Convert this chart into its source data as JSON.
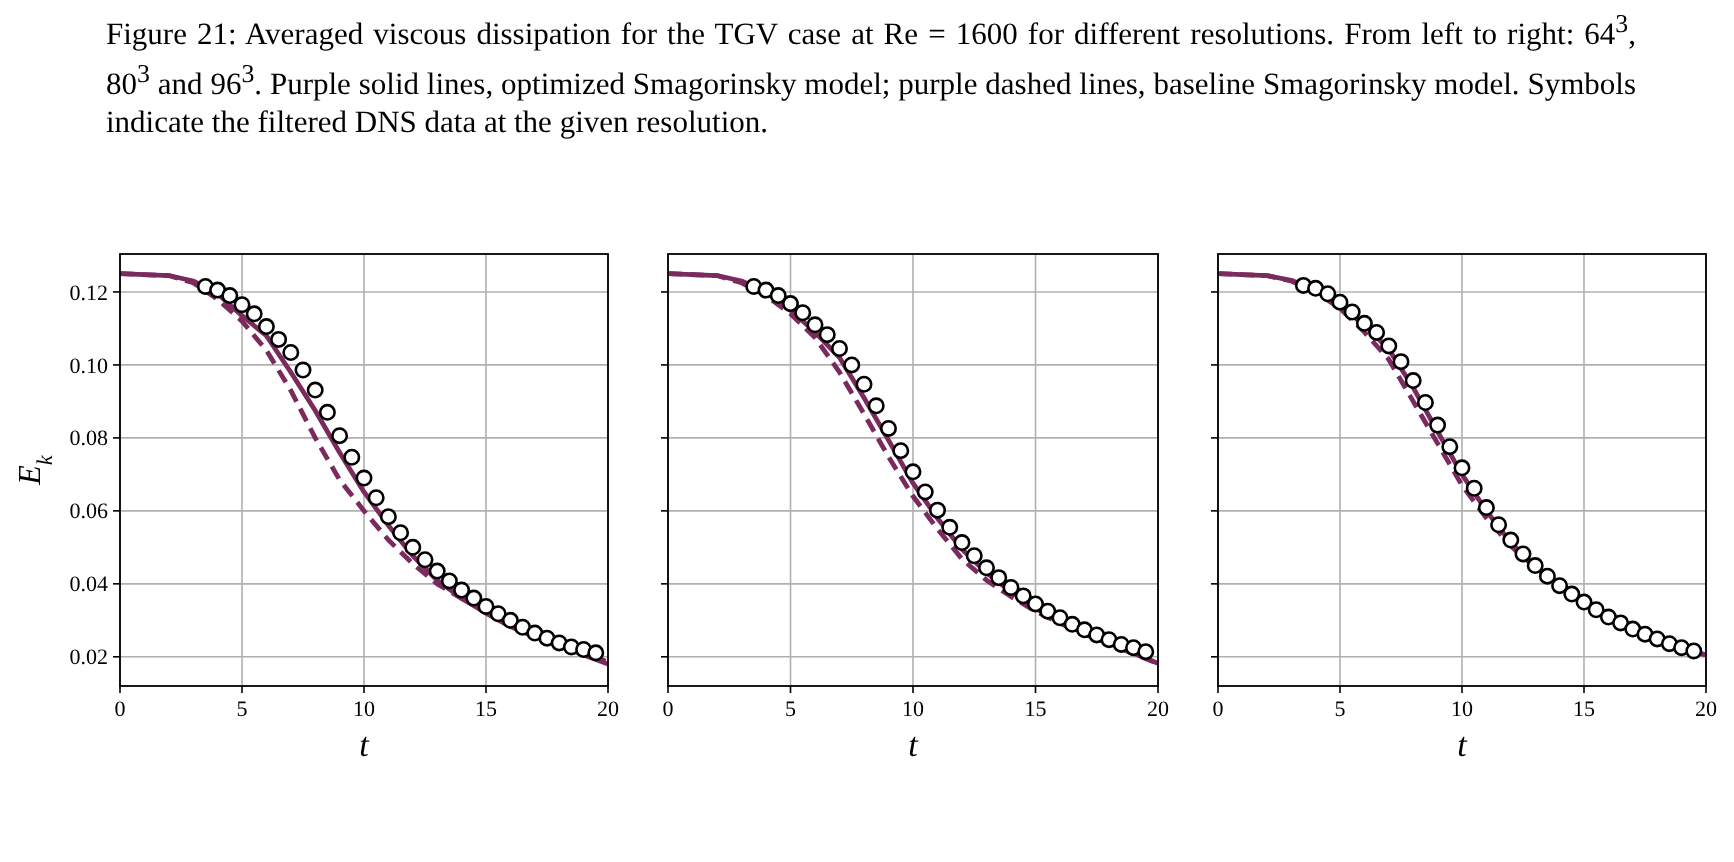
{
  "chart_data": [
    {
      "type": "line",
      "annotations": [
        "Figure 21: Averaged viscous dissipation for the TGV case at Re = 1600 for different resolutions. From left to right: 64$^{3}$, 80$^{3}$ and 96$^{3}$. Purple solid lines, optimized Smagorinsky model; purple dashed lines, baseline Smagorinsky model. Symbols indicate the filtered DNS data at the given resolution."
      ],
      "xlabel": "t",
      "ylabel": "E$_{k}$",
      "xlim": [
        0,
        20
      ],
      "ylim": [
        0.012,
        0.1304
      ],
      "xticks": [
        0,
        5,
        10,
        15,
        20
      ],
      "yticks": [
        0.02,
        0.04,
        0.06,
        0.08,
        {
          "value": 0.1,
          "label": "0.10"
        },
        0.12
      ],
      "grid": true,
      "series": [
        {
          "line_style": "solid",
          "color": "#7b2a5e",
          "x": [
            0,
            2,
            3,
            4,
            5,
            6,
            7,
            8,
            9,
            10,
            11,
            12,
            13,
            14,
            15,
            16,
            17,
            18,
            19,
            20
          ],
          "values": [
            0.125,
            0.1245,
            0.123,
            0.1195,
            0.1135,
            0.108,
            0.098,
            0.0875,
            0.076,
            0.0652,
            0.056,
            0.0477,
            0.041,
            0.036,
            0.032,
            0.0283,
            0.0255,
            0.0233,
            0.0205,
            0.018
          ]
        },
        {
          "line_style": "dashed",
          "color": "#7b2a5e",
          "x": [
            0,
            2,
            3,
            4,
            5,
            6,
            7,
            8,
            9,
            10,
            11,
            12,
            13,
            14,
            15,
            16,
            17,
            18,
            19,
            20
          ],
          "values": [
            0.125,
            0.1245,
            0.1225,
            0.118,
            0.112,
            0.104,
            0.093,
            0.08,
            0.0685,
            0.06,
            0.052,
            0.0455,
            0.04,
            0.036,
            0.0325,
            0.0295,
            0.0265,
            0.024,
            0.0215,
            0.0185
          ]
        },
        {
          "type": "scatter",
          "marker": "circle",
          "color": "#ffffff",
          "x": [
            3.5,
            4,
            4.5,
            5,
            5.5,
            6,
            6.5,
            7,
            7.5,
            8,
            8.5,
            9,
            9.5,
            10,
            10.5,
            11,
            11.5,
            12,
            12.5,
            13,
            13.5,
            14,
            14.5,
            15,
            15.5,
            16,
            16.5,
            17,
            17.5,
            18,
            18.5,
            19,
            19.5
          ],
          "values": [
            0.1215,
            0.1205,
            0.119,
            0.1165,
            0.114,
            0.1105,
            0.107,
            0.1034,
            0.0986,
            0.0931,
            0.087,
            0.0806,
            0.0747,
            0.069,
            0.0636,
            0.0584,
            0.054,
            0.05,
            0.0466,
            0.0435,
            0.0408,
            0.0383,
            0.0361,
            0.0338,
            0.0318,
            0.03,
            0.0281,
            0.0265,
            0.0251,
            0.0238,
            0.0227,
            0.022,
            0.0211
          ]
        }
      ]
    },
    {
      "type": "line",
      "xlabel": "t",
      "xlim": [
        0,
        20
      ],
      "ylim": [
        0.012,
        0.1304
      ],
      "xticks": [
        0,
        5,
        10,
        15,
        20
      ],
      "yticks": [
        0.02,
        0.04,
        0.06,
        0.08,
        0.1,
        0.12
      ],
      "grid": true,
      "tick_labels": "x",
      "series": [
        {
          "line_style": "solid",
          "color": "#7b2a5e",
          "x": [
            0,
            2,
            3,
            4,
            5,
            6,
            7,
            8,
            9,
            10,
            11,
            12,
            13,
            14,
            15,
            16,
            17,
            18,
            19,
            20
          ],
          "values": [
            0.125,
            0.1245,
            0.123,
            0.12,
            0.115,
            0.109,
            0.102,
            0.091,
            0.0794,
            0.0676,
            0.058,
            0.0495,
            0.043,
            0.0378,
            0.0333,
            0.0296,
            0.0265,
            0.0238,
            0.021,
            0.0182
          ]
        },
        {
          "line_style": "dashed",
          "color": "#7b2a5e",
          "x": [
            0,
            2,
            3,
            4,
            5,
            6,
            7,
            8,
            9,
            10,
            11,
            12,
            13,
            14,
            15,
            16,
            17,
            18,
            19,
            20
          ],
          "values": [
            0.125,
            0.1245,
            0.1225,
            0.119,
            0.114,
            0.1075,
            0.098,
            0.0866,
            0.0748,
            0.064,
            0.055,
            0.0468,
            0.041,
            0.0365,
            0.0325,
            0.0292,
            0.0262,
            0.0236,
            0.0208,
            0.0182
          ]
        },
        {
          "type": "scatter",
          "marker": "circle",
          "color": "#ffffff",
          "x": [
            3.5,
            4,
            4.5,
            5,
            5.5,
            6,
            6.5,
            7,
            7.5,
            8,
            8.5,
            9,
            9.5,
            10,
            10.5,
            11,
            11.5,
            12,
            12.5,
            13,
            13.5,
            14,
            14.5,
            15,
            15.5,
            16,
            16.5,
            17,
            17.5,
            18,
            18.5,
            19,
            19.5
          ],
          "values": [
            0.1215,
            0.1205,
            0.119,
            0.1168,
            0.1143,
            0.111,
            0.1083,
            0.1045,
            0.1,
            0.0947,
            0.0888,
            0.0826,
            0.0765,
            0.0707,
            0.0652,
            0.0602,
            0.0555,
            0.0513,
            0.0477,
            0.0444,
            0.0417,
            0.039,
            0.0367,
            0.0345,
            0.0325,
            0.0307,
            0.0289,
            0.0274,
            0.026,
            0.0247,
            0.0234,
            0.0225,
            0.0214
          ]
        }
      ]
    },
    {
      "type": "line",
      "xlabel": "t",
      "xlim": [
        0,
        20
      ],
      "ylim": [
        0.012,
        0.1304
      ],
      "xticks": [
        0,
        5,
        10,
        15,
        20
      ],
      "yticks": [
        0.02,
        0.04,
        0.06,
        0.08,
        0.1,
        0.12
      ],
      "grid": true,
      "tick_labels": "x",
      "series": [
        {
          "line_style": "solid",
          "color": "#7b2a5e",
          "x": [
            0,
            2,
            3,
            4,
            5,
            6,
            7,
            8,
            9,
            10,
            11,
            12,
            13,
            14,
            15,
            16,
            17,
            18,
            19,
            20
          ],
          "values": [
            0.125,
            0.1245,
            0.1232,
            0.1205,
            0.116,
            0.111,
            0.1043,
            0.0938,
            0.0817,
            0.07,
            0.06,
            0.0513,
            0.0448,
            0.0395,
            0.0347,
            0.0305,
            0.0272,
            0.0245,
            0.0223,
            0.0205
          ]
        },
        {
          "line_style": "dashed",
          "color": "#7b2a5e",
          "x": [
            0,
            2,
            3,
            4,
            5,
            6,
            7,
            8,
            9,
            10,
            11,
            12,
            13,
            14,
            15,
            16,
            17,
            18,
            19,
            20
          ],
          "values": [
            0.125,
            0.1245,
            0.123,
            0.12,
            0.1155,
            0.109,
            0.1015,
            0.09,
            0.0785,
            0.067,
            0.058,
            0.0504,
            0.0445,
            0.0393,
            0.0346,
            0.0305,
            0.0272,
            0.0245,
            0.0223,
            0.0205
          ]
        },
        {
          "type": "scatter",
          "marker": "circle",
          "color": "#ffffff",
          "x": [
            3.5,
            4,
            4.5,
            5,
            5.5,
            6,
            6.5,
            7,
            7.5,
            8,
            8.5,
            9,
            9.5,
            10,
            10.5,
            11,
            11.5,
            12,
            12.5,
            13,
            13.5,
            14,
            14.5,
            15,
            15.5,
            16,
            16.5,
            17,
            17.5,
            18,
            18.5,
            19,
            19.5
          ],
          "values": [
            0.1218,
            0.121,
            0.1195,
            0.1172,
            0.1145,
            0.1114,
            0.1089,
            0.1052,
            0.1009,
            0.0957,
            0.0897,
            0.0835,
            0.0776,
            0.0718,
            0.0662,
            0.0609,
            0.0562,
            0.052,
            0.0482,
            0.045,
            0.0421,
            0.0395,
            0.0372,
            0.035,
            0.0329,
            0.0309,
            0.0293,
            0.0276,
            0.0262,
            0.0249,
            0.0236,
            0.0225,
            0.0216
          ]
        }
      ]
    }
  ]
}
